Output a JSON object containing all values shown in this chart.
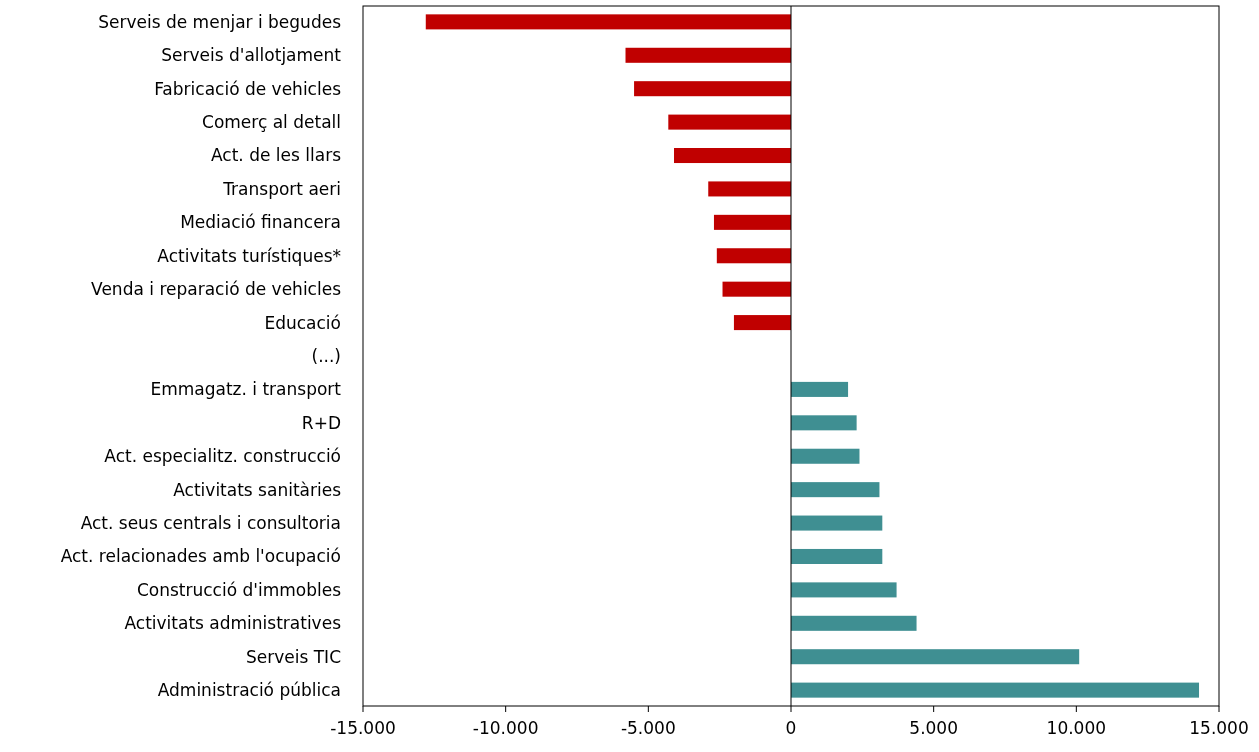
{
  "chart_data": {
    "type": "bar",
    "orientation": "horizontal",
    "categories": [
      "Serveis de menjar i begudes",
      "Serveis d'allotjament",
      "Fabricació de vehicles",
      "Comerç al detall",
      "Act. de les llars",
      "Transport aeri",
      "Mediació financera",
      "Activitats turístiques*",
      "Venda i reparació de vehicles",
      "Educació",
      "(...)",
      "Emmagatz. i transport",
      "R+D",
      "Act. especialitz. construcció",
      "Activitats sanitàries",
      "Act. seus centrals i consultoria",
      "Act. relacionades amb l'ocupació",
      "Construcció d'immobles",
      "Activitats administratives",
      "Serveis TIC",
      "Administració pública"
    ],
    "values": [
      -12800,
      -5800,
      -5500,
      -4300,
      -4100,
      -2900,
      -2700,
      -2600,
      -2400,
      -2000,
      null,
      2000,
      2300,
      2400,
      3100,
      3200,
      3200,
      3700,
      4400,
      10100,
      14300
    ],
    "colors": [
      "#c00000",
      "#c00000",
      "#c00000",
      "#c00000",
      "#c00000",
      "#c00000",
      "#c00000",
      "#c00000",
      "#c00000",
      "#c00000",
      null,
      "#3f8f92",
      "#3f8f92",
      "#3f8f92",
      "#3f8f92",
      "#3f8f92",
      "#3f8f92",
      "#3f8f92",
      "#3f8f92",
      "#3f8f92",
      "#3f8f92"
    ],
    "xlim": [
      -15000,
      15000
    ],
    "xticks": [
      {
        "value": -15000,
        "label": "-15.000"
      },
      {
        "value": -10000,
        "label": "-10.000"
      },
      {
        "value": -5000,
        "label": "-5.000"
      },
      0,
      {
        "value": 5000,
        "label": "5.000"
      },
      {
        "value": 10000,
        "label": "10.000"
      },
      {
        "value": 15000,
        "label": "15.000"
      }
    ],
    "xlabel": null
  }
}
